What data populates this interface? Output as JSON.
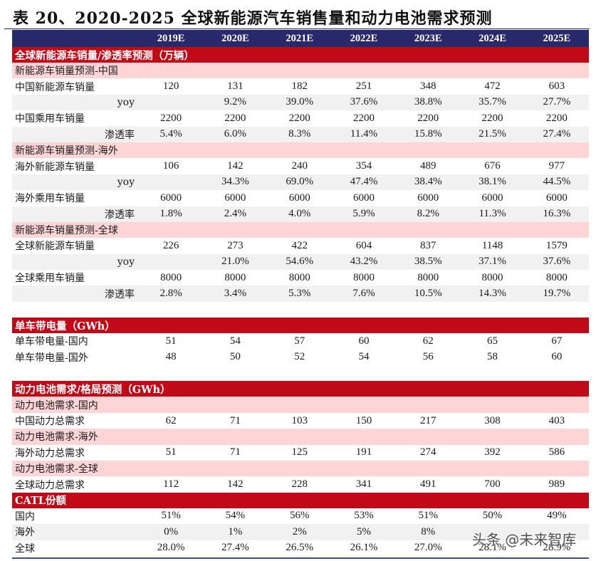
{
  "title": "表 20、2020-2025 全球新能源汽车销售量和动力电池需求预测",
  "header": {
    "years": [
      "2019E",
      "2020E",
      "2021E",
      "2022E",
      "2023E",
      "2024E",
      "2025E"
    ]
  },
  "sections": {
    "sales": {
      "title": "全球新能源车销量/渗透率预测（万辆）",
      "china": {
        "subtitle": "新能源车销量预测-中国",
        "nev_sales": {
          "label": "中国新能源车销量",
          "values": [
            "120",
            "131",
            "182",
            "251",
            "348",
            "472",
            "603"
          ]
        },
        "nev_yoy": {
          "label": "yoy",
          "values": [
            "",
            "9.2%",
            "39.0%",
            "37.6%",
            "38.8%",
            "35.7%",
            "27.7%"
          ]
        },
        "pv_sales": {
          "label": "中国乘用车销量",
          "values": [
            "2200",
            "2200",
            "2200",
            "2200",
            "2200",
            "2200",
            "2200"
          ]
        },
        "penetration": {
          "label": "渗透率",
          "values": [
            "5.4%",
            "6.0%",
            "8.3%",
            "11.4%",
            "15.8%",
            "21.5%",
            "27.4%"
          ]
        }
      },
      "overseas": {
        "subtitle": "新能源车销量预测-海外",
        "nev_sales": {
          "label": "海外新能源车销量",
          "values": [
            "106",
            "142",
            "240",
            "354",
            "489",
            "676",
            "977"
          ]
        },
        "nev_yoy": {
          "label": "yoy",
          "values": [
            "",
            "34.3%",
            "69.0%",
            "47.4%",
            "38.4%",
            "38.1%",
            "44.5%"
          ]
        },
        "pv_sales": {
          "label": "海外乘用车销量",
          "values": [
            "6000",
            "6000",
            "6000",
            "6000",
            "6000",
            "6000",
            "6000"
          ]
        },
        "penetration": {
          "label": "渗透率",
          "values": [
            "1.8%",
            "2.4%",
            "4.0%",
            "5.9%",
            "8.2%",
            "11.3%",
            "16.3%"
          ]
        }
      },
      "global": {
        "subtitle": "新能源车销量预测-全球",
        "nev_sales": {
          "label": "全球新能源车销量",
          "values": [
            "226",
            "273",
            "422",
            "604",
            "837",
            "1148",
            "1579"
          ]
        },
        "nev_yoy": {
          "label": "yoy",
          "values": [
            "",
            "21.0%",
            "54.6%",
            "43.2%",
            "38.5%",
            "37.1%",
            "37.6%"
          ]
        },
        "pv_sales": {
          "label": "全球乘用车销量",
          "values": [
            "8000",
            "8000",
            "8000",
            "8000",
            "8000",
            "8000",
            "8000"
          ]
        },
        "penetration": {
          "label": "渗透率",
          "values": [
            "2.8%",
            "3.4%",
            "5.3%",
            "7.6%",
            "10.5%",
            "14.3%",
            "19.7%"
          ]
        }
      }
    },
    "battery_per_vehicle": {
      "title": "单车带电量（GWh）",
      "domestic": {
        "label": "单车带电量-国内",
        "values": [
          "51",
          "54",
          "57",
          "60",
          "62",
          "65",
          "67"
        ]
      },
      "overseas": {
        "label": "单车带电量-国外",
        "values": [
          "48",
          "50",
          "52",
          "54",
          "56",
          "58",
          "60"
        ]
      }
    },
    "battery_demand": {
      "title": "动力电池需求/格局预测（GWh）",
      "china_sub": "动力电池需求-国内",
      "china": {
        "label": "中国动力总需求",
        "values": [
          "62",
          "71",
          "103",
          "150",
          "217",
          "308",
          "403"
        ]
      },
      "overseas_sub": "动力电池需求-海外",
      "overseas": {
        "label": "海外动力总需求",
        "values": [
          "51",
          "71",
          "125",
          "191",
          "274",
          "392",
          "586"
        ]
      },
      "global_sub": "动力电池需求-全球",
      "global": {
        "label": "全球动力总需求",
        "values": [
          "112",
          "142",
          "228",
          "341",
          "491",
          "700",
          "989"
        ]
      }
    },
    "catl_share": {
      "title": "CATL份额",
      "domestic": {
        "label": "国内",
        "values": [
          "51%",
          "54%",
          "56%",
          "53%",
          "51%",
          "50%",
          "49%"
        ]
      },
      "overseas": {
        "label": "海外",
        "values": [
          "0%",
          "1%",
          "2%",
          "5%",
          "8%",
          "",
          ""
        ]
      },
      "global": {
        "label": "全球",
        "values": [
          "28.0%",
          "27.4%",
          "26.5%",
          "26.1%",
          "27.0%",
          "28.1%",
          "28.9%"
        ]
      }
    }
  },
  "watermark": "头条 @未来智库",
  "colors": {
    "header_bg": "#27296b",
    "section_bg": "#c00a17",
    "subsection_bg": "#fdd5d7",
    "alt_row_bg": "#f1f1f1"
  }
}
